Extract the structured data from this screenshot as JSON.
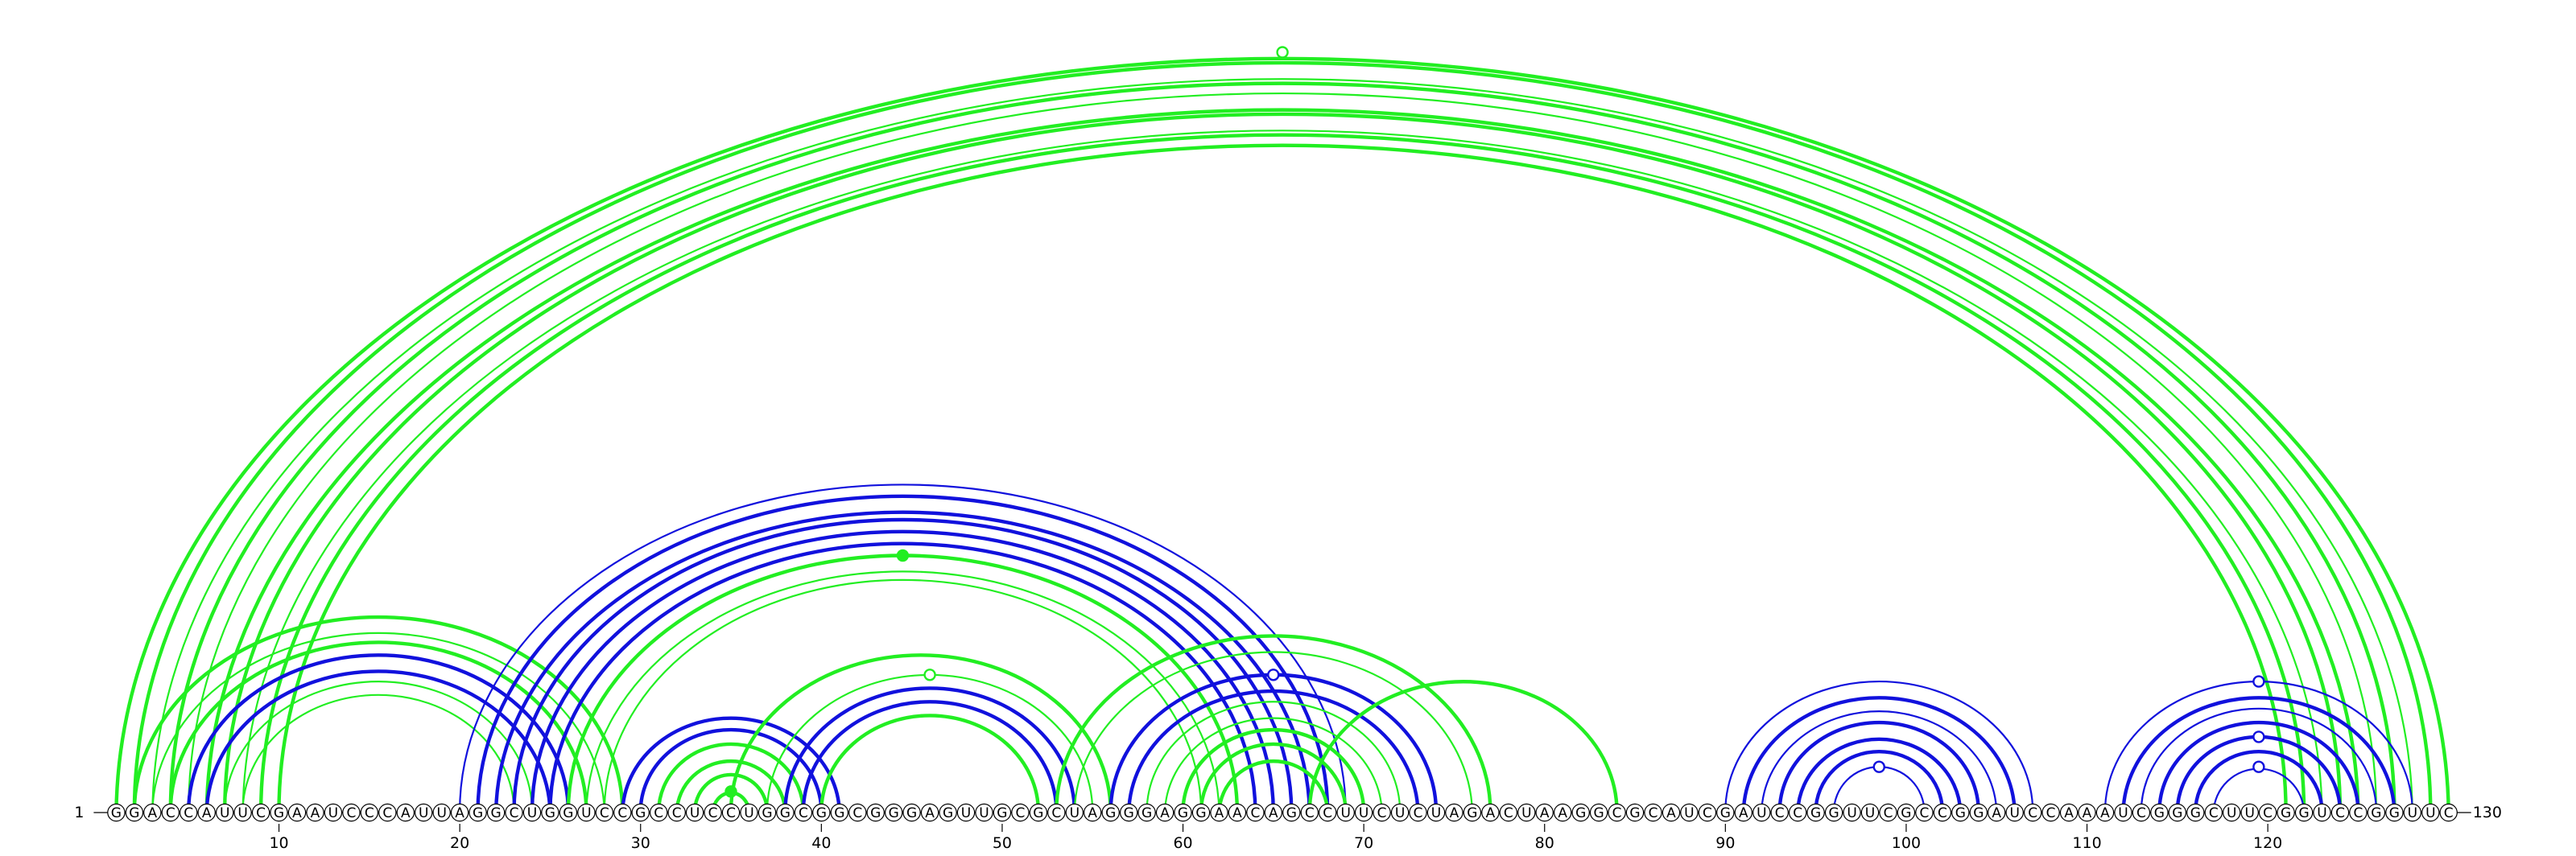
{
  "sequence": "GGACCAUUCGAAUCCCAUUAGGCUGGUCCGCCUCCUGGCGGCGGGAGUUGCGCUAGGGAGGAACAGCCUUCUCUAGACUAAGGCGCAUCGAUCCGGUUCGCCGGAUCCAAAUCGGGCUUCGGUCCGGUUC",
  "start_label": "1",
  "end_label": "130",
  "ticks": [
    10,
    20,
    30,
    40,
    50,
    60,
    70,
    80,
    90,
    100,
    110,
    120
  ],
  "colors": {
    "green": "#22ee22",
    "blue": "#1111dd",
    "backbone": "#000000"
  },
  "arcs": [
    {
      "i": 1,
      "j": 130,
      "color": "green",
      "weight": "thick"
    },
    {
      "i": 2,
      "j": 129,
      "color": "green",
      "weight": "thick"
    },
    {
      "i": 3,
      "j": 128,
      "color": "green",
      "weight": "thin"
    },
    {
      "i": 4,
      "j": 127,
      "color": "green",
      "weight": "thick"
    },
    {
      "i": 5,
      "j": 126,
      "color": "green",
      "weight": "thin"
    },
    {
      "i": 6,
      "j": 125,
      "color": "green",
      "weight": "thick"
    },
    {
      "i": 7,
      "j": 124,
      "color": "green",
      "weight": "thick"
    },
    {
      "i": 8,
      "j": 123,
      "color": "green",
      "weight": "thin"
    },
    {
      "i": 9,
      "j": 122,
      "color": "green",
      "weight": "thick"
    },
    {
      "i": 10,
      "j": 121,
      "color": "green",
      "weight": "thick"
    },
    {
      "i": 2,
      "j": 29,
      "color": "green",
      "weight": "thick"
    },
    {
      "i": 3,
      "j": 28,
      "color": "green",
      "weight": "thin"
    },
    {
      "i": 4,
      "j": 27,
      "color": "green",
      "weight": "thick"
    },
    {
      "i": 5,
      "j": 26,
      "color": "blue",
      "weight": "thick"
    },
    {
      "i": 6,
      "j": 25,
      "color": "blue",
      "weight": "thick"
    },
    {
      "i": 7,
      "j": 24,
      "color": "green",
      "weight": "thin"
    },
    {
      "i": 8,
      "j": 23,
      "color": "green",
      "weight": "thin"
    },
    {
      "i": 20,
      "j": 69,
      "color": "blue",
      "weight": "thin"
    },
    {
      "i": 21,
      "j": 68,
      "color": "blue",
      "weight": "thick"
    },
    {
      "i": 22,
      "j": 67,
      "color": "blue",
      "weight": "thick"
    },
    {
      "i": 23,
      "j": 66,
      "color": "blue",
      "weight": "thick"
    },
    {
      "i": 24,
      "j": 65,
      "color": "blue",
      "weight": "thick"
    },
    {
      "i": 25,
      "j": 64,
      "color": "blue",
      "weight": "thick"
    },
    {
      "i": 26,
      "j": 63,
      "color": "green",
      "weight": "thick"
    },
    {
      "i": 27,
      "j": 62,
      "color": "green",
      "weight": "thin"
    },
    {
      "i": 28,
      "j": 61,
      "color": "green",
      "weight": "thin"
    },
    {
      "i": 29,
      "j": 41,
      "color": "blue",
      "weight": "thick"
    },
    {
      "i": 30,
      "j": 40,
      "color": "blue",
      "weight": "thick"
    },
    {
      "i": 31,
      "j": 39,
      "color": "green",
      "weight": "thick"
    },
    {
      "i": 32,
      "j": 38,
      "color": "green",
      "weight": "thick"
    },
    {
      "i": 33,
      "j": 37,
      "color": "green",
      "weight": "thick"
    },
    {
      "i": 34,
      "j": 36,
      "color": "green",
      "weight": "thick"
    },
    {
      "i": 35,
      "j": 56,
      "color": "green",
      "weight": "thick"
    },
    {
      "i": 37,
      "j": 55,
      "color": "green",
      "weight": "thin"
    },
    {
      "i": 38,
      "j": 54,
      "color": "blue",
      "weight": "thick"
    },
    {
      "i": 39,
      "j": 53,
      "color": "blue",
      "weight": "thick"
    },
    {
      "i": 40,
      "j": 52,
      "color": "green",
      "weight": "thick"
    },
    {
      "i": 53,
      "j": 77,
      "color": "green",
      "weight": "thick"
    },
    {
      "i": 54,
      "j": 76,
      "color": "green",
      "weight": "thin"
    },
    {
      "i": 56,
      "j": 74,
      "color": "blue",
      "weight": "thick"
    },
    {
      "i": 57,
      "j": 73,
      "color": "blue",
      "weight": "thick"
    },
    {
      "i": 58,
      "j": 72,
      "color": "green",
      "weight": "thin"
    },
    {
      "i": 59,
      "j": 71,
      "color": "green",
      "weight": "thin"
    },
    {
      "i": 60,
      "j": 70,
      "color": "green",
      "weight": "thick"
    },
    {
      "i": 61,
      "j": 69,
      "color": "green",
      "weight": "thick"
    },
    {
      "i": 62,
      "j": 68,
      "color": "green",
      "weight": "thick"
    },
    {
      "i": 67,
      "j": 84,
      "color": "green",
      "weight": "thick"
    },
    {
      "i": 90,
      "j": 107,
      "color": "blue",
      "weight": "thin"
    },
    {
      "i": 91,
      "j": 106,
      "color": "blue",
      "weight": "thick"
    },
    {
      "i": 92,
      "j": 105,
      "color": "blue",
      "weight": "thin"
    },
    {
      "i": 93,
      "j": 104,
      "color": "blue",
      "weight": "thick"
    },
    {
      "i": 94,
      "j": 103,
      "color": "blue",
      "weight": "thick"
    },
    {
      "i": 95,
      "j": 102,
      "color": "blue",
      "weight": "thick"
    },
    {
      "i": 96,
      "j": 101,
      "color": "blue",
      "weight": "thin"
    },
    {
      "i": 111,
      "j": 128,
      "color": "blue",
      "weight": "thin"
    },
    {
      "i": 112,
      "j": 127,
      "color": "blue",
      "weight": "thick"
    },
    {
      "i": 113,
      "j": 126,
      "color": "blue",
      "weight": "thin"
    },
    {
      "i": 114,
      "j": 125,
      "color": "blue",
      "weight": "thick"
    },
    {
      "i": 115,
      "j": 124,
      "color": "blue",
      "weight": "thick"
    },
    {
      "i": 116,
      "j": 123,
      "color": "blue",
      "weight": "thick"
    },
    {
      "i": 117,
      "j": 122,
      "color": "blue",
      "weight": "thin"
    }
  ],
  "markers": [
    {
      "i": 1,
      "j": 130,
      "color": "green",
      "style": "open"
    },
    {
      "i": 26,
      "j": 63,
      "color": "green",
      "style": "filled"
    },
    {
      "i": 34,
      "j": 36,
      "color": "green",
      "style": "filled"
    },
    {
      "i": 37,
      "j": 55,
      "color": "green",
      "style": "open"
    },
    {
      "i": 56,
      "j": 74,
      "color": "blue",
      "style": "open"
    },
    {
      "i": 96,
      "j": 101,
      "color": "blue",
      "style": "open"
    },
    {
      "i": 111,
      "j": 128,
      "color": "blue",
      "style": "open"
    },
    {
      "i": 115,
      "j": 124,
      "color": "blue",
      "style": "open"
    },
    {
      "i": 117,
      "j": 122,
      "color": "blue",
      "style": "open"
    }
  ]
}
